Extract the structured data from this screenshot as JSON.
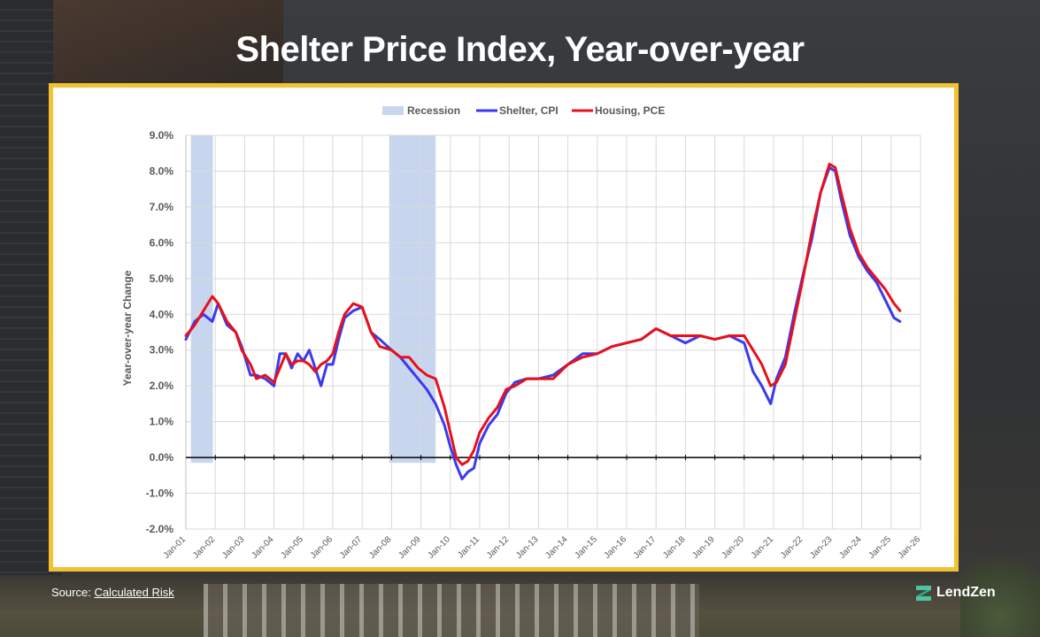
{
  "page": {
    "title": "Shelter Price Index, Year-over-year",
    "source_prefix": "Source:",
    "source_link": "Calculated Risk",
    "brand": "LendZen"
  },
  "colors": {
    "frame": "#f2c232",
    "recession": "#c7d6ee",
    "shelter": "#3a3af0",
    "housing": "#e8101a",
    "grid": "#d9d9d9",
    "zero_line": "#000000"
  },
  "chart_data": {
    "type": "line",
    "title": "",
    "ylabel": "Year-over-year Change",
    "xlabel": "",
    "ylim": [
      -2.0,
      9.0
    ],
    "yticks": [
      -2.0,
      -1.0,
      0.0,
      1.0,
      2.0,
      3.0,
      4.0,
      5.0,
      6.0,
      7.0,
      8.0,
      9.0
    ],
    "ytick_labels": [
      "-2.0%",
      "-1.0%",
      "0.0%",
      "1.0%",
      "2.0%",
      "3.0%",
      "4.0%",
      "5.0%",
      "6.0%",
      "7.0%",
      "8.0%",
      "9.0%"
    ],
    "xlim": [
      2001.0,
      2026.0
    ],
    "xticks": [
      2001,
      2002,
      2003,
      2004,
      2005,
      2006,
      2007,
      2008,
      2009,
      2010,
      2011,
      2012,
      2013,
      2014,
      2015,
      2016,
      2017,
      2018,
      2019,
      2020,
      2021,
      2022,
      2023,
      2024,
      2025,
      2026
    ],
    "xtick_labels": [
      "Jan-01",
      "Jan-02",
      "Jan-03",
      "Jan-04",
      "Jan-05",
      "Jan-06",
      "Jan-07",
      "Jan-08",
      "Jan-09",
      "Jan-10",
      "Jan-11",
      "Jan-12",
      "Jan-13",
      "Jan-14",
      "Jan-15",
      "Jan-16",
      "Jan-17",
      "Jan-18",
      "Jan-19",
      "Jan-20",
      "Jan-21",
      "Jan-22",
      "Jan-23",
      "Jan-24",
      "Jan-25",
      "Jan-26"
    ],
    "grid": true,
    "legend_position": "top-center",
    "recessions": [
      {
        "name": "Recession",
        "start": 2001.17,
        "end": 2001.92
      },
      {
        "name": "Recession",
        "start": 2007.92,
        "end": 2009.5
      }
    ],
    "series": [
      {
        "name": "Shelter, CPI",
        "x": [
          2001.0,
          2001.3,
          2001.6,
          2001.9,
          2002.1,
          2002.4,
          2002.7,
          2002.9,
          2003.2,
          2003.4,
          2003.7,
          2004.0,
          2004.2,
          2004.4,
          2004.6,
          2004.8,
          2005.0,
          2005.2,
          2005.4,
          2005.6,
          2005.8,
          2006.0,
          2006.2,
          2006.4,
          2006.7,
          2007.0,
          2007.3,
          2007.6,
          2008.0,
          2008.3,
          2008.6,
          2008.9,
          2009.2,
          2009.5,
          2009.8,
          2010.0,
          2010.2,
          2010.4,
          2010.6,
          2010.8,
          2011.0,
          2011.3,
          2011.6,
          2011.9,
          2012.2,
          2012.6,
          2013.0,
          2013.5,
          2014.0,
          2014.5,
          2015.0,
          2015.5,
          2016.0,
          2016.5,
          2017.0,
          2017.5,
          2018.0,
          2018.5,
          2019.0,
          2019.5,
          2020.0,
          2020.3,
          2020.6,
          2020.9,
          2021.1,
          2021.4,
          2021.7,
          2022.0,
          2022.3,
          2022.6,
          2022.9,
          2023.1,
          2023.3,
          2023.6,
          2023.9,
          2024.2,
          2024.5,
          2024.8,
          2025.1,
          2025.3
        ],
        "values": [
          3.3,
          3.8,
          4.0,
          3.8,
          4.3,
          3.7,
          3.5,
          3.1,
          2.3,
          2.3,
          2.2,
          2.0,
          2.9,
          2.9,
          2.5,
          2.9,
          2.7,
          3.0,
          2.5,
          2.0,
          2.6,
          2.6,
          3.3,
          3.9,
          4.1,
          4.2,
          3.5,
          3.3,
          3.0,
          2.8,
          2.5,
          2.2,
          1.9,
          1.5,
          0.9,
          0.3,
          -0.2,
          -0.6,
          -0.4,
          -0.3,
          0.4,
          0.9,
          1.2,
          1.8,
          2.1,
          2.2,
          2.2,
          2.3,
          2.6,
          2.9,
          2.9,
          3.1,
          3.2,
          3.3,
          3.6,
          3.4,
          3.2,
          3.4,
          3.3,
          3.4,
          3.2,
          2.4,
          2.0,
          1.5,
          2.2,
          2.8,
          4.0,
          5.1,
          6.1,
          7.4,
          8.1,
          8.0,
          7.2,
          6.2,
          5.6,
          5.2,
          4.9,
          4.4,
          3.9,
          3.8
        ]
      },
      {
        "name": "Housing, PCE",
        "x": [
          2001.0,
          2001.3,
          2001.6,
          2001.9,
          2002.1,
          2002.4,
          2002.7,
          2002.9,
          2003.2,
          2003.4,
          2003.7,
          2004.0,
          2004.2,
          2004.4,
          2004.6,
          2004.8,
          2005.0,
          2005.2,
          2005.4,
          2005.6,
          2005.8,
          2006.0,
          2006.2,
          2006.4,
          2006.7,
          2007.0,
          2007.3,
          2007.6,
          2008.0,
          2008.3,
          2008.6,
          2008.9,
          2009.2,
          2009.5,
          2009.8,
          2010.0,
          2010.2,
          2010.4,
          2010.6,
          2010.8,
          2011.0,
          2011.3,
          2011.6,
          2011.9,
          2012.2,
          2012.6,
          2013.0,
          2013.5,
          2014.0,
          2014.5,
          2015.0,
          2015.5,
          2016.0,
          2016.5,
          2017.0,
          2017.5,
          2018.0,
          2018.5,
          2019.0,
          2019.5,
          2020.0,
          2020.3,
          2020.6,
          2020.9,
          2021.1,
          2021.4,
          2021.7,
          2022.0,
          2022.3,
          2022.6,
          2022.9,
          2023.1,
          2023.3,
          2023.6,
          2023.9,
          2024.2,
          2024.5,
          2024.8,
          2025.1,
          2025.3
        ],
        "values": [
          3.4,
          3.7,
          4.1,
          4.5,
          4.3,
          3.8,
          3.5,
          3.0,
          2.6,
          2.2,
          2.3,
          2.1,
          2.5,
          2.9,
          2.6,
          2.7,
          2.7,
          2.6,
          2.4,
          2.6,
          2.7,
          2.9,
          3.5,
          4.0,
          4.3,
          4.2,
          3.5,
          3.1,
          3.0,
          2.8,
          2.8,
          2.5,
          2.3,
          2.2,
          1.4,
          0.7,
          0.0,
          -0.2,
          -0.1,
          0.2,
          0.7,
          1.1,
          1.4,
          1.9,
          2.0,
          2.2,
          2.2,
          2.2,
          2.6,
          2.8,
          2.9,
          3.1,
          3.2,
          3.3,
          3.6,
          3.4,
          3.4,
          3.4,
          3.3,
          3.4,
          3.4,
          3.0,
          2.6,
          2.0,
          2.1,
          2.6,
          3.8,
          5.0,
          6.3,
          7.4,
          8.2,
          8.1,
          7.4,
          6.4,
          5.7,
          5.3,
          5.0,
          4.7,
          4.3,
          4.1
        ]
      }
    ]
  }
}
